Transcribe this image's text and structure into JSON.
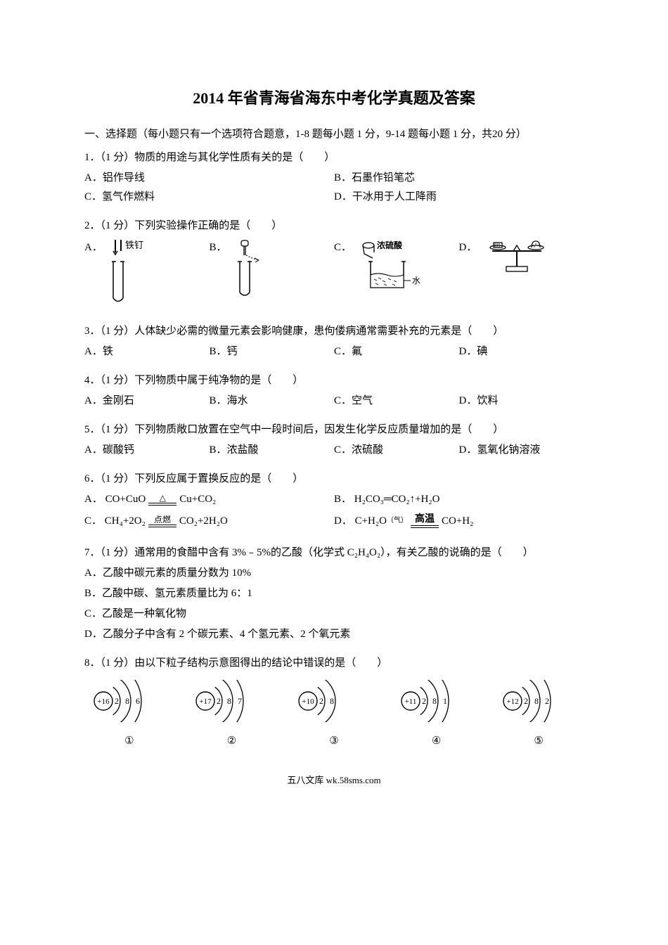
{
  "title": "2014 年省青海省海东中考化学真题及答案",
  "section1": {
    "header": "一、选择题（每小题只有一个选项符合题意，1-8 题每小题 1 分，9-14 题每小题 1 分，共20 分）"
  },
  "q1": {
    "text": "1．（1 分）物质的用途与其化学性质有关的是（　　）",
    "a": "A．铝作导线",
    "b": "B．石墨作铅笔芯",
    "c": "C．氢气作燃料",
    "d": "D．干冰用于人工降雨"
  },
  "q2": {
    "text": "2．（1 分）下列实验操作正确的是（　　）",
    "a": "A．",
    "b": "B．",
    "c": "C．",
    "d": "D．",
    "labels": {
      "a": "铁钉",
      "c1": "浓硫酸",
      "c2": "水"
    }
  },
  "q3": {
    "text": "3．（1 分）人体缺少必需的微量元素会影响健康，患佝偻病通常需要补充的元素是（　　）",
    "a": "A．铁",
    "b": "B．钙",
    "c": "C．氟",
    "d": "D．碘"
  },
  "q4": {
    "text": "4．（1 分）下列物质中属于纯净物的是（　　）",
    "a": "A．金刚石",
    "b": "B．海水",
    "c": "C．空气",
    "d": "D．饮料"
  },
  "q5": {
    "text": "5．（1 分）下列物质敞口放置在空气中一段时间后，因发生化学反应质量增加的是（　　）",
    "a": "A．碳酸钙",
    "b": "B．浓盐酸",
    "c": "C．浓硫酸",
    "d": "D．氢氧化钠溶液"
  },
  "q6": {
    "text": "6．（1 分）下列反应属于置换反应的是（　　）",
    "a_pre": "A．",
    "a_left": "CO+CuO",
    "a_cond": "△",
    "a_right": "Cu+CO₂",
    "b_pre": "B．",
    "b_eq": "H₂CO₃═CO₂↑+H₂O",
    "c_pre": "C．",
    "c_left": "CH₄+2O₂",
    "c_cond": "点燃",
    "c_right": "CO₂+2H₂O",
    "d_pre": "D．",
    "d_left": "C+H₂O",
    "d_gas": "（气）",
    "d_cond": "高温",
    "d_right": "CO+H₂"
  },
  "q7": {
    "text": "7．（1 分）通常用的食醋中含有 3%﹣5%的乙酸（化学式 C₂H₄O₂），有关乙酸的说确的是（　　）",
    "a": "A．乙酸中碳元素的质量分数为 10%",
    "b": "B．乙酸中碳、氢元素质量比为 6：1",
    "c": "C．乙酸是一种氧化物",
    "d": "D．乙酸分子中含有 2 个碳元素、4 个氢元素、2 个氧元素"
  },
  "q8": {
    "text": "8．（1 分）由以下粒子结构示意图得出的结论中错误的是（　　）",
    "atoms": [
      {
        "nucleus": "+16",
        "shells": [
          "2",
          "8",
          "6"
        ],
        "label": "①"
      },
      {
        "nucleus": "+17",
        "shells": [
          "2",
          "8",
          "7"
        ],
        "label": "②"
      },
      {
        "nucleus": "+10",
        "shells": [
          "2",
          "8"
        ],
        "label": "③"
      },
      {
        "nucleus": "+11",
        "shells": [
          "2",
          "8",
          "1"
        ],
        "label": "④"
      },
      {
        "nucleus": "+12",
        "shells": [
          "2",
          "8",
          "2"
        ],
        "label": "⑤"
      }
    ]
  },
  "footer": "五八文库 wk.58sms.com",
  "colors": {
    "text": "#000000",
    "background": "#ffffff"
  }
}
